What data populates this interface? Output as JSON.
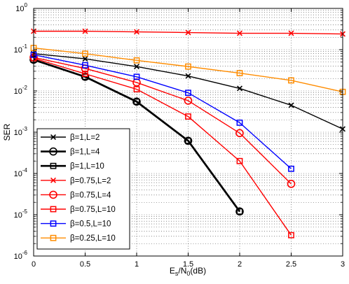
{
  "chart_data": {
    "type": "line",
    "title": "",
    "xlabel": "Es/N0(dB)",
    "xlabel_parts": {
      "base": "E",
      "sub1": "s",
      "mid": "/N",
      "sub2": "0",
      "tail": "(dB)"
    },
    "ylabel": "SER",
    "xlim": [
      0,
      3
    ],
    "ylim_log10": [
      -6,
      0
    ],
    "yscale": "log",
    "grid": "dotted, major and minor",
    "legend_position": "bottom-left",
    "x_tick_labels": [
      "0",
      "0.5",
      "1",
      "1.5",
      "2",
      "2.5",
      "3"
    ],
    "x_ticks": [
      0,
      0.5,
      1,
      1.5,
      2,
      2.5,
      3
    ],
    "y_tick_exponents": [
      0,
      -1,
      -2,
      -3,
      -4,
      -5,
      -6
    ],
    "y_tick_base": "10",
    "series": [
      {
        "name": "β=1,L=2",
        "color": "#000000",
        "marker": "x",
        "linewidth": 1.4,
        "x": [
          0,
          0.5,
          1,
          1.5,
          2,
          2.5,
          3
        ],
        "y": [
          0.08,
          0.06,
          0.039,
          0.023,
          0.0115,
          0.0045,
          0.0012
        ]
      },
      {
        "name": "β=1,L=4",
        "color": "#000000",
        "marker": "o",
        "linewidth": 2.6,
        "x": [
          0,
          0.5,
          1,
          1.5,
          2
        ],
        "y": [
          0.057,
          0.022,
          0.0055,
          0.00062,
          1.2e-05
        ]
      },
      {
        "name": "β=1,L=10",
        "color": "#000000",
        "marker": "s",
        "linewidth": 2.6,
        "x": [
          0,
          0.5,
          1,
          1.5,
          2
        ],
        "y": [
          0.057,
          0.022,
          0.0055,
          0.00062,
          1.2e-05
        ]
      },
      {
        "name": "β=0.75,L=2",
        "color": "#ff0000",
        "marker": "x",
        "linewidth": 1.4,
        "x": [
          0,
          0.5,
          1,
          1.5,
          2,
          2.5,
          3
        ],
        "y": [
          0.28,
          0.28,
          0.27,
          0.26,
          0.25,
          0.25,
          0.24
        ]
      },
      {
        "name": "β=0.75,L=4",
        "color": "#ff0000",
        "marker": "o",
        "linewidth": 1.4,
        "x": [
          0,
          0.5,
          1,
          1.5,
          2,
          2.5
        ],
        "y": [
          0.065,
          0.035,
          0.016,
          0.0058,
          0.00095,
          5.6e-05
        ]
      },
      {
        "name": "β=0.75,L=10",
        "color": "#ff0000",
        "marker": "s",
        "linewidth": 1.4,
        "x": [
          0,
          0.5,
          1,
          1.5,
          2,
          2.5
        ],
        "y": [
          0.062,
          0.026,
          0.011,
          0.0024,
          0.0002,
          3.2e-06
        ]
      },
      {
        "name": "β=0.5,L=10",
        "color": "#0000ff",
        "marker": "s",
        "linewidth": 1.4,
        "x": [
          0,
          0.5,
          1,
          1.5,
          2,
          2.5
        ],
        "y": [
          0.075,
          0.042,
          0.022,
          0.009,
          0.0017,
          0.00013
        ]
      },
      {
        "name": "β=0.25,L=10",
        "color": "#ff8c00",
        "marker": "s",
        "linewidth": 1.4,
        "x": [
          0,
          0.5,
          1,
          1.5,
          2,
          2.5,
          3
        ],
        "y": [
          0.11,
          0.08,
          0.055,
          0.039,
          0.027,
          0.018,
          0.0095
        ]
      }
    ]
  }
}
